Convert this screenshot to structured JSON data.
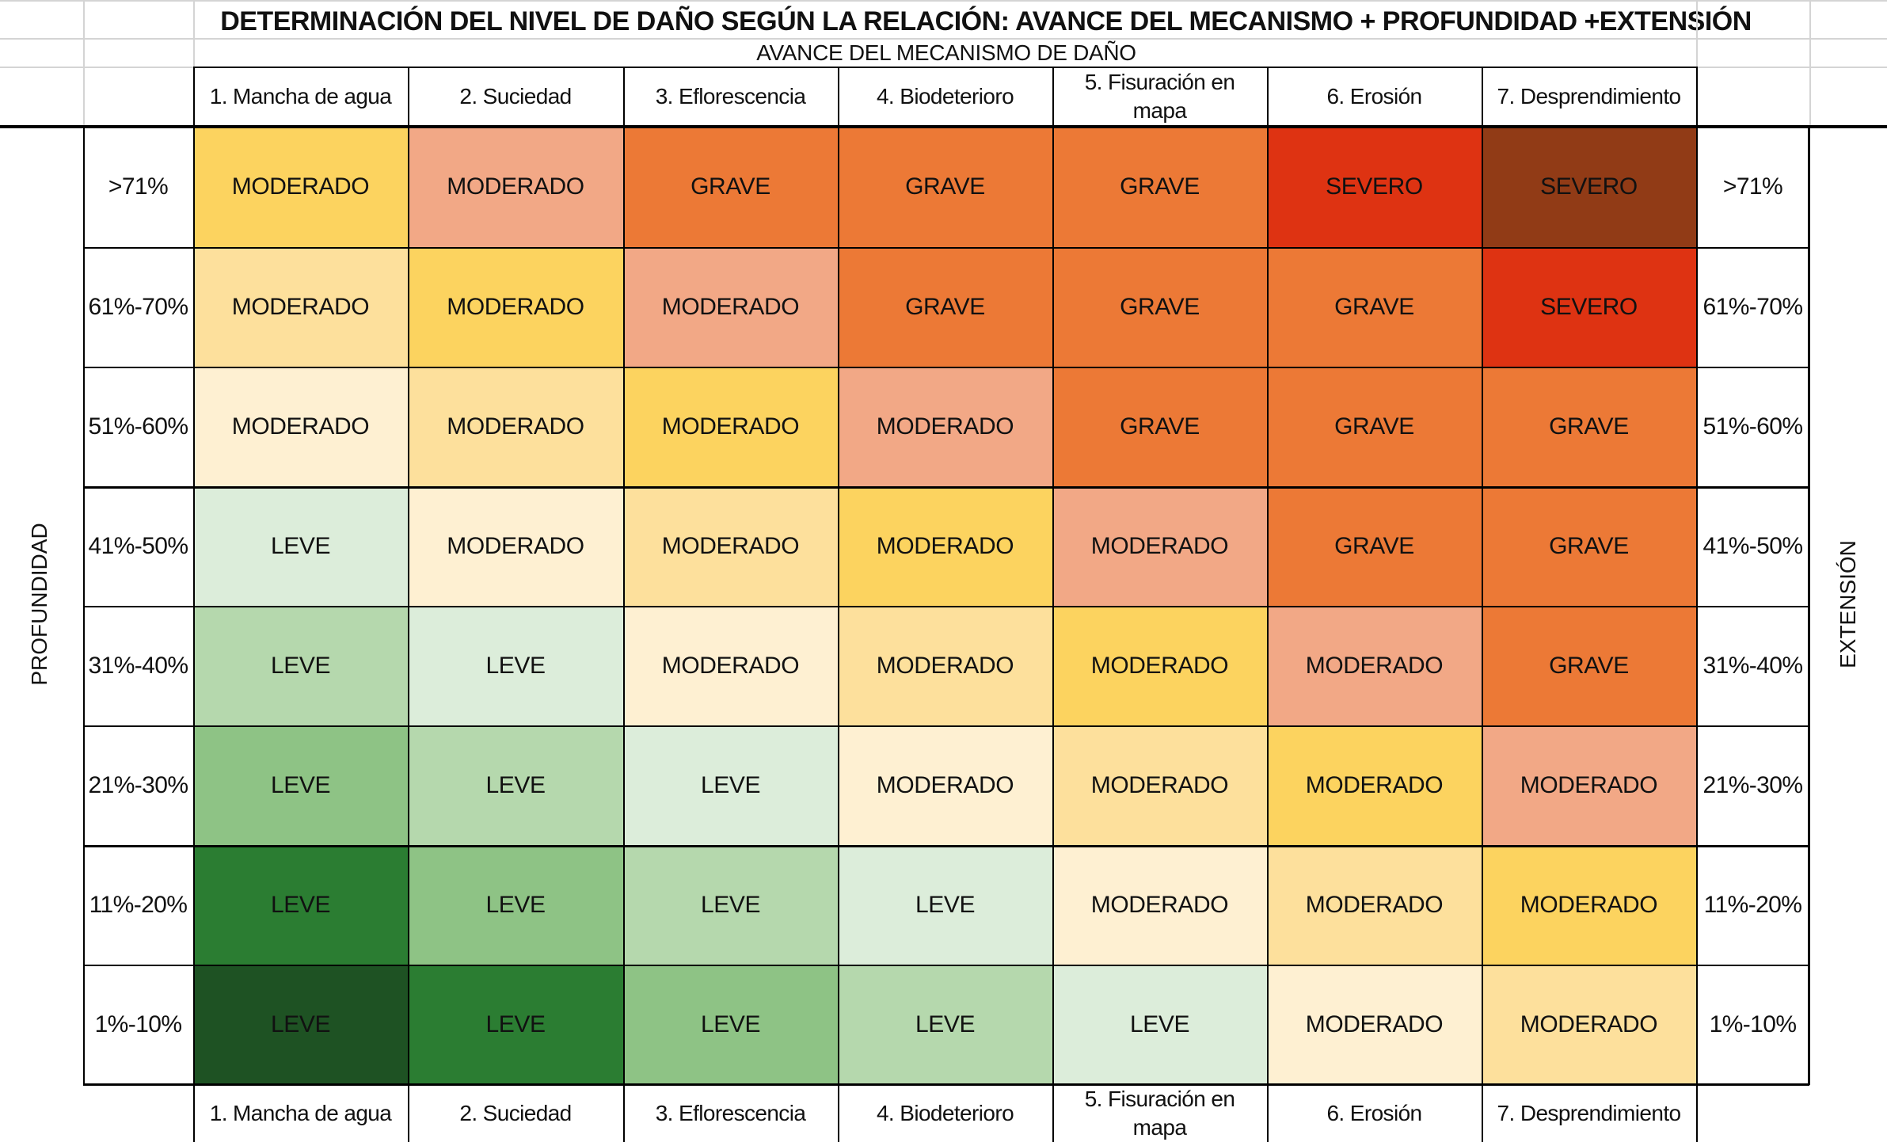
{
  "title": "DETERMINACIÓN DEL NIVEL DE DAÑO SEGÚN LA RELACIÓN: AVANCE DEL MECANISMO + PROFUNDIDAD +EXTENSIÓN",
  "subtitle": "AVANCE DEL MECANISMO DE DAÑO",
  "left_axis_label": "PROFUNDIDAD",
  "right_axis_label": "EXTENSIÓN",
  "columns": [
    "1. Mancha de agua",
    "2. Suciedad",
    "3. Eflorescencia",
    "4. Biodeterioro",
    "5. Fisuración en mapa",
    "6. Erosión",
    "7. Desprendimiento"
  ],
  "rows": [
    {
      "label": ">71%",
      "cells": [
        {
          "level": "MODERADO",
          "color": "#fcd35f"
        },
        {
          "level": "MODERADO",
          "color": "#f2a886"
        },
        {
          "level": "GRAVE",
          "color": "#ec7936"
        },
        {
          "level": "GRAVE",
          "color": "#ec7936"
        },
        {
          "level": "GRAVE",
          "color": "#ec7936"
        },
        {
          "level": "SEVERO",
          "color": "#de3312"
        },
        {
          "level": "SEVERO",
          "color": "#913b16"
        }
      ]
    },
    {
      "label": "61%-70%",
      "cells": [
        {
          "level": "MODERADO",
          "color": "#fde09c"
        },
        {
          "level": "MODERADO",
          "color": "#fcd35f"
        },
        {
          "level": "MODERADO",
          "color": "#f2a886"
        },
        {
          "level": "GRAVE",
          "color": "#ec7936"
        },
        {
          "level": "GRAVE",
          "color": "#ec7936"
        },
        {
          "level": "GRAVE",
          "color": "#ec7936"
        },
        {
          "level": "SEVERO",
          "color": "#de3312"
        }
      ]
    },
    {
      "label": "51%-60%",
      "cells": [
        {
          "level": "MODERADO",
          "color": "#fef0d2"
        },
        {
          "level": "MODERADO",
          "color": "#fde09c"
        },
        {
          "level": "MODERADO",
          "color": "#fcd35f"
        },
        {
          "level": "MODERADO",
          "color": "#f2a886"
        },
        {
          "level": "GRAVE",
          "color": "#ec7936"
        },
        {
          "level": "GRAVE",
          "color": "#ec7936"
        },
        {
          "level": "GRAVE",
          "color": "#ec7936"
        }
      ]
    },
    {
      "label": "41%-50%",
      "cells": [
        {
          "level": "LEVE",
          "color": "#dcedda"
        },
        {
          "level": "MODERADO",
          "color": "#fef0d2"
        },
        {
          "level": "MODERADO",
          "color": "#fde09c"
        },
        {
          "level": "MODERADO",
          "color": "#fcd35f"
        },
        {
          "level": "MODERADO",
          "color": "#f2a886"
        },
        {
          "level": "GRAVE",
          "color": "#ec7936"
        },
        {
          "level": "GRAVE",
          "color": "#ec7936"
        }
      ]
    },
    {
      "label": "31%-40%",
      "cells": [
        {
          "level": "LEVE",
          "color": "#b5d8ad"
        },
        {
          "level": "LEVE",
          "color": "#dcedda"
        },
        {
          "level": "MODERADO",
          "color": "#fef0d2"
        },
        {
          "level": "MODERADO",
          "color": "#fde09c"
        },
        {
          "level": "MODERADO",
          "color": "#fcd35f"
        },
        {
          "level": "MODERADO",
          "color": "#f2a886"
        },
        {
          "level": "GRAVE",
          "color": "#ec7936"
        }
      ]
    },
    {
      "label": "21%-30%",
      "cells": [
        {
          "level": "LEVE",
          "color": "#8ec385"
        },
        {
          "level": "LEVE",
          "color": "#b5d8ad"
        },
        {
          "level": "LEVE",
          "color": "#dcedda"
        },
        {
          "level": "MODERADO",
          "color": "#fef0d2"
        },
        {
          "level": "MODERADO",
          "color": "#fde09c"
        },
        {
          "level": "MODERADO",
          "color": "#fcd35f"
        },
        {
          "level": "MODERADO",
          "color": "#f2a886"
        }
      ]
    },
    {
      "label": "11%-20%",
      "cells": [
        {
          "level": "LEVE",
          "color": "#2b7d32"
        },
        {
          "level": "LEVE",
          "color": "#8ec385"
        },
        {
          "level": "LEVE",
          "color": "#b5d8ad"
        },
        {
          "level": "LEVE",
          "color": "#dcedda"
        },
        {
          "level": "MODERADO",
          "color": "#fef0d2"
        },
        {
          "level": "MODERADO",
          "color": "#fde09c"
        },
        {
          "level": "MODERADO",
          "color": "#fcd35f"
        }
      ]
    },
    {
      "label": "1%-10%",
      "cells": [
        {
          "level": "LEVE",
          "color": "#1e5223"
        },
        {
          "level": "LEVE",
          "color": "#2b7d32"
        },
        {
          "level": "LEVE",
          "color": "#8ec385"
        },
        {
          "level": "LEVE",
          "color": "#b5d8ad"
        },
        {
          "level": "LEVE",
          "color": "#dcedda"
        },
        {
          "level": "MODERADO",
          "color": "#fef0d2"
        },
        {
          "level": "MODERADO",
          "color": "#fde09c"
        }
      ]
    }
  ]
}
